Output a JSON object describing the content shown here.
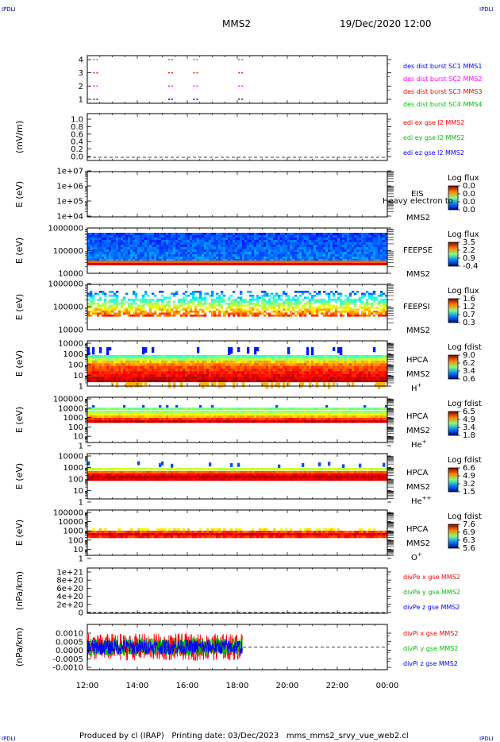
{
  "header": {
    "corner_tl": "IPDLI",
    "corner_tr": "IPDLI",
    "corner_bl": "IPDLI",
    "corner_br": "IPDLI",
    "title": "MMS2",
    "date": "19/Dec/2020 12:00"
  },
  "footer": {
    "text": "Produced by cl (IRAP)   Printing date: 03/Dec/2023   mms_mms2_srvy_vue_web2.cl"
  },
  "colors": {
    "blue": "#0000ff",
    "magenta": "#ff00ff",
    "red": "#ff0000",
    "green": "#00c000",
    "label_blue": "#0000c0"
  },
  "chart_data": [
    {
      "type": "scatter",
      "id": "burst",
      "ylabel": "",
      "ylim": [
        0.5,
        4.5
      ],
      "yticks": [
        "1",
        "2",
        "3",
        "4"
      ],
      "series": [
        {
          "name": "des dist burst SC1 MMS1",
          "color": "blue",
          "y": 1,
          "x": [
            0.3,
            3.3,
            4.3,
            6.1
          ]
        },
        {
          "name": "des dist burst SC2 MMS2",
          "color": "magenta",
          "y": 2,
          "x": [
            0.3,
            3.3,
            4.3,
            6.1
          ]
        },
        {
          "name": "des dist burst SC3 MMS3",
          "color": "red",
          "y": 3,
          "x": [
            0.3,
            3.3,
            4.3,
            6.1
          ]
        },
        {
          "name": "des dist burst SC4 MMS4",
          "color": "green",
          "y": 4,
          "x": [
            0.3,
            3.3,
            4.3,
            6.1
          ]
        }
      ]
    },
    {
      "type": "line",
      "id": "edi",
      "ylabel": "(mV/m)",
      "ylim": [
        0,
        1.1
      ],
      "yticks": [
        "0.0",
        "0.2",
        "0.4",
        "0.6",
        "0.8",
        "1.0"
      ],
      "series": [
        {
          "name": "edi ex gse l2 MMS2",
          "color": "red",
          "values": []
        },
        {
          "name": "edi ey gse l2 MMS2",
          "color": "green",
          "values": []
        },
        {
          "name": "edi ez gse l2 MMS2",
          "color": "blue",
          "values": []
        }
      ],
      "zero_line": 0
    },
    {
      "type": "heatmap",
      "id": "eis",
      "ylabel": "E (eV)",
      "ylim": [
        "1e+04",
        "1e+07"
      ],
      "yticks": [
        "1e+04",
        "1e+05",
        "1e+06",
        "1e+07"
      ],
      "instrument": "EIS",
      "overlap_text": "Heavy electron to",
      "sc": "MMS2",
      "colorbar_title": "Log flux",
      "colorbar_ticks": [
        "0.0",
        "0.0",
        "0.0",
        "0.0"
      ],
      "spectrum": "none"
    },
    {
      "type": "heatmap",
      "id": "feepse",
      "ylabel": "E (eV)",
      "ylim": [
        "10000",
        "1000000"
      ],
      "yticks": [
        "10000",
        "100000",
        "1000000"
      ],
      "instrument": "FEEPSE",
      "sc": "MMS2",
      "colorbar_title": "Log flux",
      "colorbar_ticks": [
        "3.5",
        "2.2",
        "0.9",
        "-0.4"
      ],
      "spectrum": "feepse"
    },
    {
      "type": "heatmap",
      "id": "feepsi",
      "ylabel": "E (eV)",
      "ylim": [
        "10000",
        "1000000"
      ],
      "yticks": [
        "10000",
        "100000",
        "1000000"
      ],
      "instrument": "FEEPSI",
      "sc": "MMS2",
      "colorbar_title": "Log flux",
      "colorbar_ticks": [
        "1.6",
        "1.2",
        "0.7",
        "0.3"
      ],
      "spectrum": "feepsi"
    },
    {
      "type": "heatmap",
      "id": "hpca_h",
      "ylabel": "E (eV)",
      "ylim": [
        1,
        40000
      ],
      "yticks": [
        "1",
        "10",
        "100",
        "1000",
        "10000"
      ],
      "instrument": "HPCA",
      "sc": "MMS2",
      "species_base": "H",
      "species_sup": "+",
      "colorbar_title": "Log fdist",
      "colorbar_ticks": [
        "9.0",
        "6.2",
        "3.4",
        "0.6"
      ],
      "spectrum": "hpca_h"
    },
    {
      "type": "heatmap",
      "id": "hpca_he",
      "ylabel": "E (eV)",
      "ylim": [
        1,
        100000
      ],
      "yticks": [
        "1",
        "10",
        "100",
        "1000",
        "10000",
        "100000"
      ],
      "instrument": "HPCA",
      "sc": "MMS2",
      "species_base": "He",
      "species_sup": "+",
      "colorbar_title": "Log fdist",
      "colorbar_ticks": [
        "6.5",
        "4.9",
        "3.4",
        "1.8"
      ],
      "spectrum": "hpca_he"
    },
    {
      "type": "heatmap",
      "id": "hpca_hepp",
      "ylabel": "E (eV)",
      "ylim": [
        1,
        100000
      ],
      "yticks": [
        "1",
        "10",
        "100",
        "1000",
        "10000"
      ],
      "instrument": "HPCA",
      "sc": "MMS2",
      "species_base": "He",
      "species_sup": "++",
      "colorbar_title": "Log fdist",
      "colorbar_ticks": [
        "6.6",
        "4.9",
        "3.2",
        "1.5"
      ],
      "spectrum": "hpca_hepp"
    },
    {
      "type": "heatmap",
      "id": "hpca_o",
      "ylabel": "E (eV)",
      "ylim": [
        1,
        100000
      ],
      "yticks": [
        "1",
        "10",
        "100",
        "1000",
        "10000",
        "100000"
      ],
      "instrument": "HPCA",
      "sc": "MMS2",
      "species_base": "O",
      "species_sup": "+",
      "colorbar_title": "Log fdist",
      "colorbar_ticks": [
        "7.6",
        "6.9",
        "6.3",
        "5.6"
      ],
      "spectrum": "hpca_o"
    },
    {
      "type": "line",
      "id": "divpe",
      "ylabel": "(nPa/km)",
      "ylim": [
        0,
        1.1e+21
      ],
      "yticks": [
        "0",
        "2e+20",
        "4e+20",
        "6e+20",
        "8e+20",
        "1e+21"
      ],
      "series": [
        {
          "name": "divPe x gse MMS2",
          "color": "red",
          "values": []
        },
        {
          "name": "divPe y gse MMS2",
          "color": "green",
          "values": []
        },
        {
          "name": "divPe z gse MMS2",
          "color": "blue",
          "values": []
        }
      ],
      "zero_line": 0
    },
    {
      "type": "line",
      "id": "divpi",
      "ylabel": "(nPa/km)",
      "ylim": [
        -0.0015,
        0.0015
      ],
      "yticks": [
        "-0.0010",
        "-0.0005",
        "0.0000",
        "0.0005",
        "0.0010"
      ],
      "series": [
        {
          "name": "divPi x gse MMS2",
          "color": "red",
          "amplitude": 0.0009
        },
        {
          "name": "divPi y gse MMS2",
          "color": "green",
          "amplitude": 0.0006
        },
        {
          "name": "divPi z gse MMS2",
          "color": "blue",
          "amplitude": 0.0005
        }
      ],
      "x_range_hours": [
        0,
        6.2
      ],
      "zero_line": 0
    }
  ],
  "x_axis": {
    "ticks": [
      "12:00",
      "14:00",
      "16:00",
      "18:00",
      "20:00",
      "22:00",
      "00:00"
    ],
    "range_hours": [
      0,
      12
    ]
  }
}
